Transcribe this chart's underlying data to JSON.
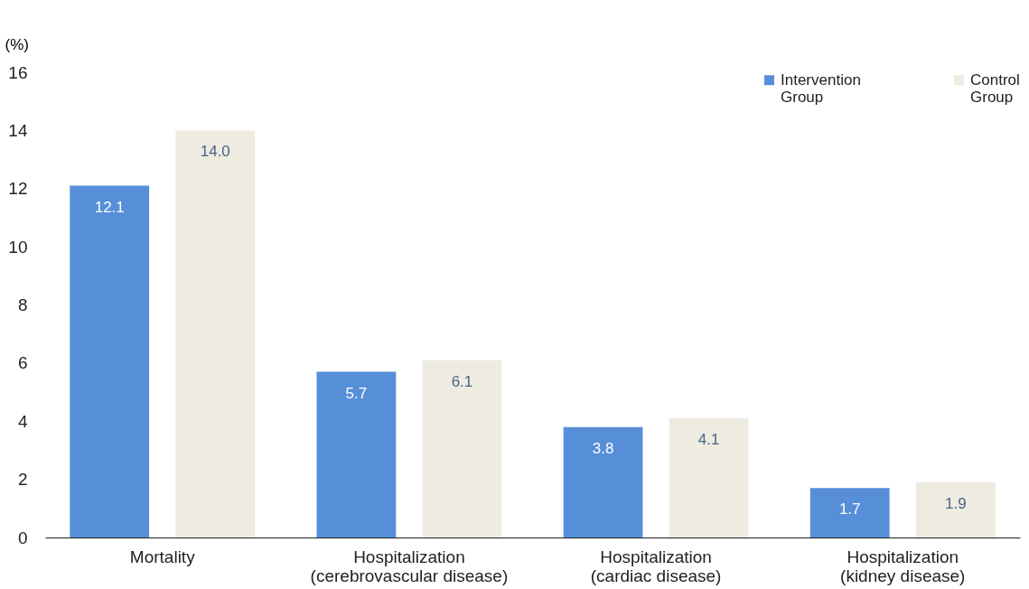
{
  "chart_data": {
    "type": "bar",
    "ylabel": "(%)",
    "categories": [
      "Mortality",
      "Hospitalization (cerebrovascular disease)",
      "Hospitalization (cardiac disease)",
      "Hospitalization (kidney disease)"
    ],
    "series": [
      {
        "name": "Intervention Group",
        "color": "#568fd8",
        "values": [
          12.1,
          5.7,
          3.8,
          1.7
        ],
        "value_labels": [
          "12.1",
          "5.7",
          "3.8",
          "1.7"
        ]
      },
      {
        "name": "Control Group",
        "color": "#eeebe0",
        "values": [
          14.0,
          6.1,
          4.1,
          1.9
        ],
        "value_labels": [
          "14.0",
          "6.1",
          "4.1",
          "1.9"
        ]
      }
    ],
    "ylim": [
      0,
      16
    ],
    "yticks": [
      0,
      2,
      4,
      6,
      8,
      10,
      12,
      14,
      16
    ],
    "grid": false,
    "legend": "top right"
  }
}
